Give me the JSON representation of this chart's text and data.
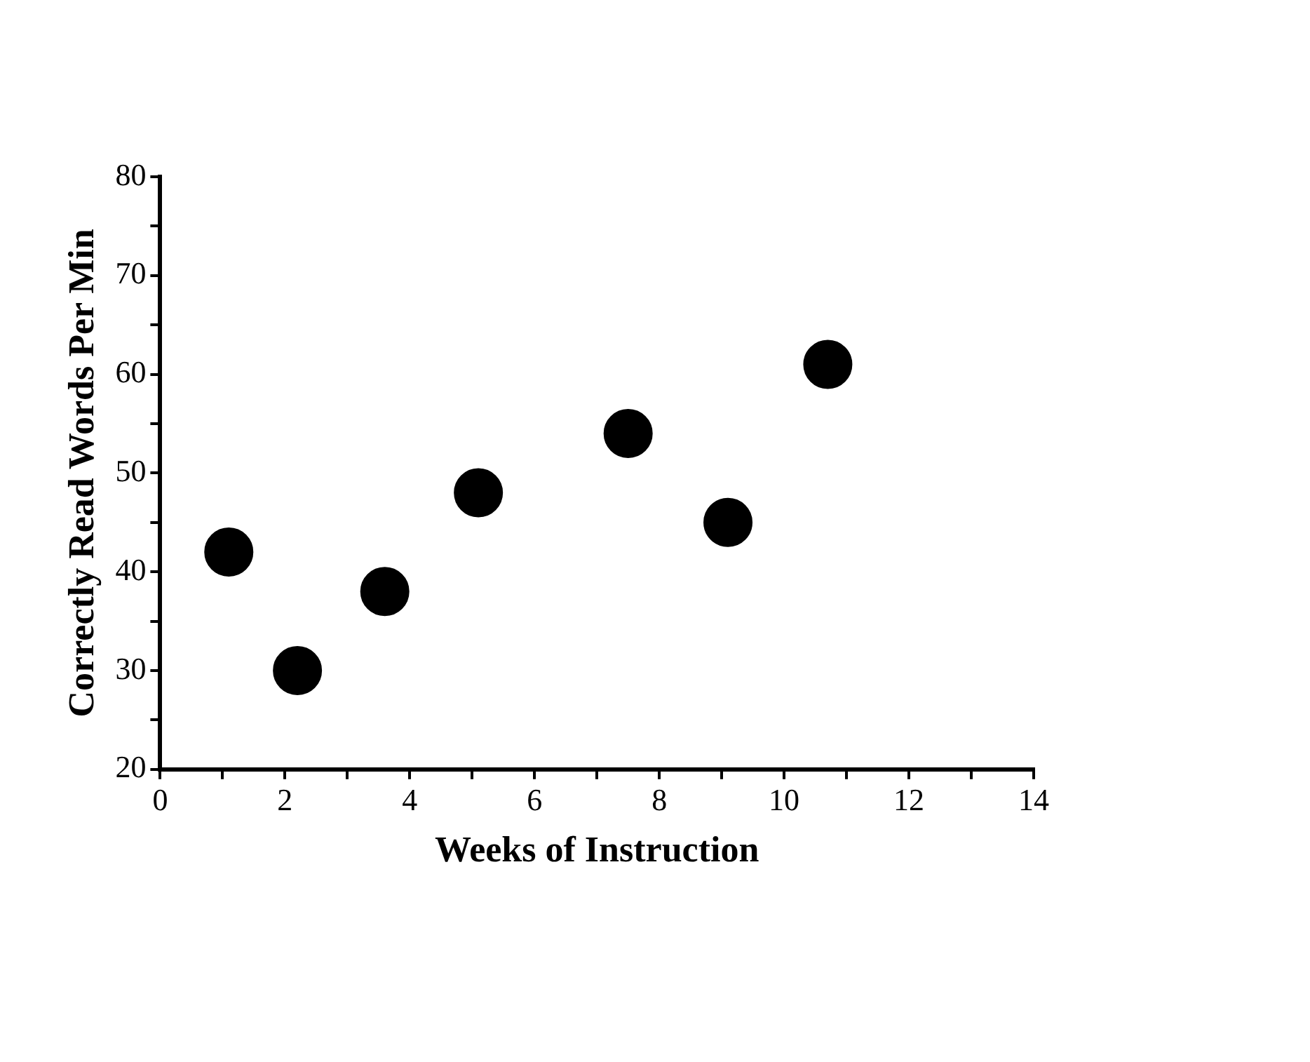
{
  "chart_data": {
    "type": "scatter",
    "xlabel": "Weeks of Instruction",
    "ylabel": "Correctly Read Words Per Min",
    "series": [
      {
        "color": "#000000",
        "x": [
          1.1,
          2.2,
          3.6,
          5.1,
          7.5,
          9.1,
          10.7
        ],
        "values": [
          42,
          30,
          38,
          48,
          54,
          45,
          61
        ]
      }
    ],
    "xlim": [
      0,
      14
    ],
    "xticks": [
      0,
      {
        "value": 1,
        "label": null
      },
      2,
      {
        "value": 3,
        "label": null
      },
      4,
      {
        "value": 5,
        "label": null
      },
      6,
      {
        "value": 7,
        "label": null
      },
      8,
      {
        "value": 9,
        "label": null
      },
      10,
      {
        "value": 11,
        "label": null
      },
      12,
      {
        "value": 13,
        "label": null
      },
      14
    ],
    "ylim": [
      20,
      80
    ],
    "yticks": [
      20,
      {
        "value": 25,
        "label": null
      },
      30,
      {
        "value": 35,
        "label": null
      },
      40,
      {
        "value": 45,
        "label": null
      },
      50,
      {
        "value": 55,
        "label": null
      },
      60,
      {
        "value": 65,
        "label": null
      },
      70,
      {
        "value": 75,
        "label": null
      },
      80
    ],
    "marker": "circle",
    "grid": false,
    "legend": false
  }
}
